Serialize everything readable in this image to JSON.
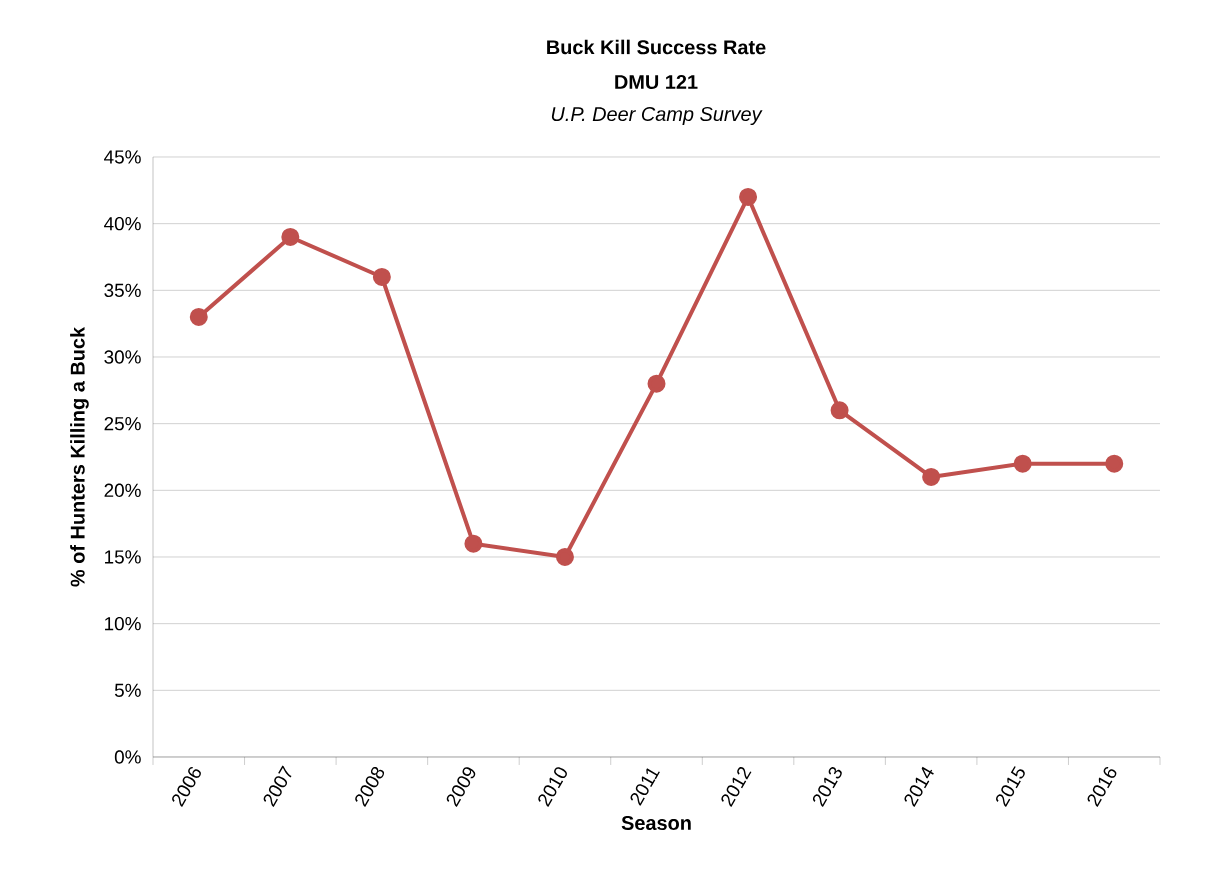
{
  "chart_data": {
    "type": "line",
    "title": "Buck Kill Success Rate",
    "subtitle": "DMU 121",
    "annotations": [
      "U.P. Deer Camp Survey"
    ],
    "xlabel": "Season",
    "ylabel": "% of Hunters Killing a Buck",
    "categories": [
      "2006",
      "2007",
      "2008",
      "2009",
      "2010",
      "2011",
      "2012",
      "2013",
      "2014",
      "2015",
      "2016"
    ],
    "series": [
      {
        "color": "#c0504d",
        "values": [
          33,
          39,
          36,
          16,
          15,
          28,
          42,
          26,
          21,
          22,
          22
        ]
      }
    ],
    "ylim": [
      0,
      45
    ],
    "yticks": [
      {
        "value": 0,
        "label": "0%"
      },
      {
        "value": 5,
        "label": "5%"
      },
      {
        "value": 10,
        "label": "10%"
      },
      {
        "value": 15,
        "label": "15%"
      },
      {
        "value": 20,
        "label": "20%"
      },
      {
        "value": 25,
        "label": "25%"
      },
      {
        "value": 30,
        "label": "30%"
      },
      {
        "value": 35,
        "label": "35%"
      },
      {
        "value": 40,
        "label": "40%"
      },
      {
        "value": 45,
        "label": "45%"
      }
    ],
    "grid": "y",
    "marker": "circle",
    "line_style": "solid",
    "legend": false
  }
}
